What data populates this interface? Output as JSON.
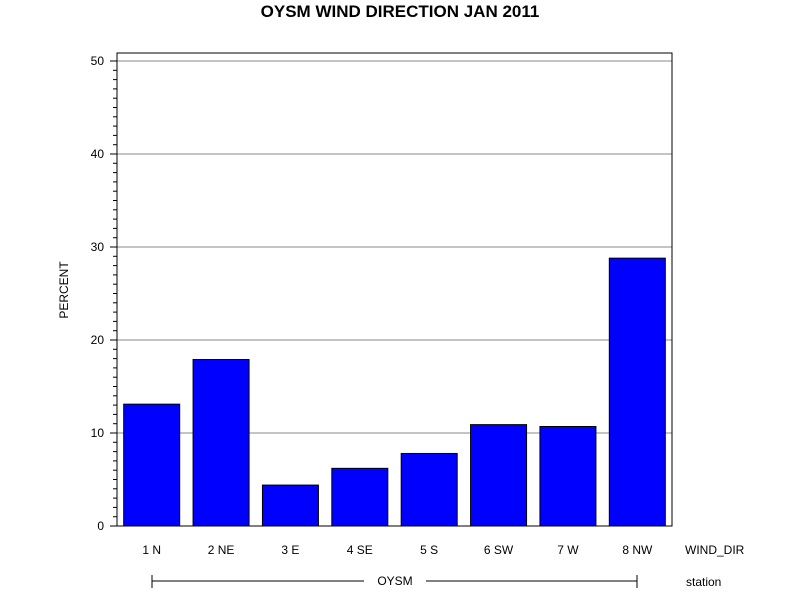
{
  "chart_data": {
    "type": "bar",
    "title": "OYSM WIND DIRECTION JAN 2011",
    "ylabel": "PERCENT",
    "xlabel": "WIND_DIR",
    "group_label": "station",
    "group_value": "OYSM",
    "categories": [
      "1 N",
      "2 NE",
      "3 E",
      "4 SE",
      "5 S",
      "6 SW",
      "7 W",
      "8 NW"
    ],
    "values": [
      13.1,
      17.9,
      4.4,
      6.2,
      7.8,
      10.9,
      10.7,
      28.8
    ],
    "ylim": [
      0,
      50
    ],
    "yticks": [
      "0",
      "10",
      "20",
      "30",
      "40",
      "50"
    ],
    "grid": true,
    "bar_color": "#0000ff"
  }
}
